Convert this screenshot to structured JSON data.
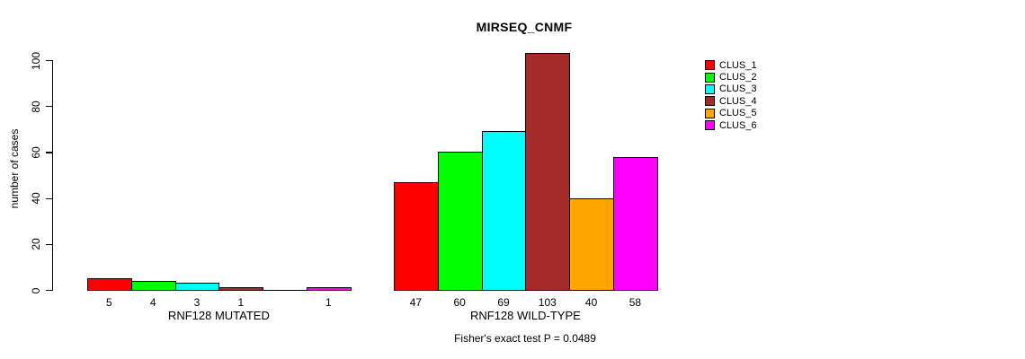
{
  "chart_data": {
    "type": "bar",
    "title": "MIRSEQ_CNMF",
    "ylabel": "number of cases",
    "xlabel": "",
    "ylim": [
      0,
      100
    ],
    "yticks": [
      0,
      20,
      40,
      60,
      80,
      100
    ],
    "grid": false,
    "legend_position": "right",
    "series_names": [
      "CLUS_1",
      "CLUS_2",
      "CLUS_3",
      "CLUS_4",
      "CLUS_5",
      "CLUS_6"
    ],
    "colors": [
      "#FF0000",
      "#00FF00",
      "#00FFFF",
      "#A52A2A",
      "#FFA500",
      "#FF00FF"
    ],
    "groups": [
      {
        "label": "RNF128 MUTATED",
        "values": [
          5,
          4,
          3,
          1,
          0,
          1
        ],
        "bar_labels": [
          "5",
          "4",
          "3",
          "1",
          "",
          "1"
        ]
      },
      {
        "label": "RNF128 WILD-TYPE",
        "values": [
          47,
          60,
          69,
          103,
          40,
          58
        ],
        "bar_labels": [
          "47",
          "60",
          "69",
          "103",
          "40",
          "58"
        ]
      }
    ],
    "legend": {
      "entries": [
        "CLUS_1",
        "CLUS_2",
        "CLUS_3",
        "CLUS_4",
        "CLUS_5",
        "CLUS_6"
      ]
    },
    "annotation": "Fisher's exact test P = 0.0489",
    "fisher_p_value": "0.0489"
  }
}
